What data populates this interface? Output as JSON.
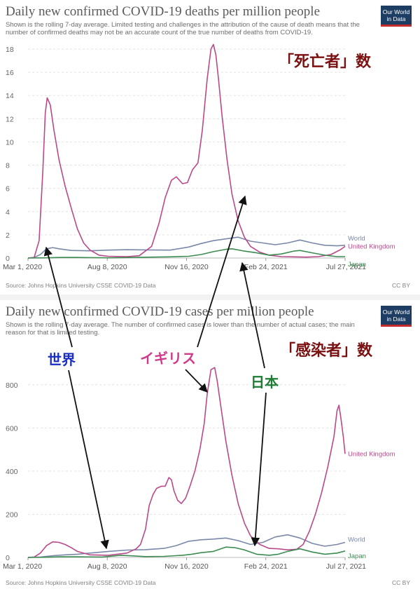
{
  "chart_data": [
    {
      "type": "line",
      "title": "Daily new confirmed COVID-19 deaths per million people",
      "subtitle": "Shown is the rolling 7-day average. Limited testing and challenges in the attribution of the cause of death means that the number of confirmed deaths may not be an accurate count of the true number of deaths from COVID-19.",
      "source": "Source: Johns Hopkins University CSSE COVID-19 Data",
      "license": "CC BY",
      "logo": [
        "Our World",
        "in Data"
      ],
      "ylim": [
        0,
        18
      ],
      "y_ticks": [
        0,
        2,
        4,
        6,
        8,
        10,
        12,
        14,
        16,
        18
      ],
      "x_ticks": [
        "Mar 1, 2020",
        "Aug 8, 2020",
        "Nov 16, 2020",
        "Feb 24, 2021",
        "Jul 27, 2021"
      ],
      "xlim_days": [
        0,
        513
      ],
      "grid": true,
      "series": [
        {
          "name": "World",
          "color": "#7a88a8",
          "x": [
            0,
            10,
            20,
            30,
            40,
            50,
            70,
            100,
            130,
            160,
            190,
            230,
            260,
            280,
            300,
            320,
            340,
            360,
            380,
            400,
            420,
            440,
            460,
            480,
            500,
            513
          ],
          "y": [
            0,
            0.05,
            0.3,
            0.8,
            0.9,
            0.8,
            0.65,
            0.62,
            0.68,
            0.72,
            0.7,
            0.68,
            0.95,
            1.25,
            1.5,
            1.65,
            1.8,
            1.45,
            1.3,
            1.15,
            1.3,
            1.55,
            1.3,
            1.1,
            1.05,
            1.1
          ]
        },
        {
          "name": "United Kingdom",
          "color": "#b84a8a",
          "x": [
            0,
            10,
            18,
            24,
            28,
            31,
            36,
            42,
            50,
            60,
            70,
            80,
            90,
            100,
            115,
            130,
            160,
            180,
            200,
            212,
            222,
            232,
            240,
            250,
            258,
            266,
            275,
            282,
            290,
            296,
            300,
            304,
            308,
            314,
            322,
            330,
            340,
            350,
            360,
            375,
            390,
            410,
            430,
            450,
            470,
            490,
            505,
            513
          ],
          "y": [
            0,
            0.05,
            1.5,
            7.5,
            12.5,
            13.8,
            13.2,
            11.0,
            8.5,
            6.2,
            4.3,
            2.5,
            1.3,
            0.7,
            0.25,
            0.15,
            0.12,
            0.2,
            1.0,
            3.0,
            5.2,
            6.7,
            7.0,
            6.4,
            6.5,
            7.6,
            8.2,
            11.0,
            15.5,
            18.0,
            18.4,
            17.5,
            15.5,
            12.2,
            8.5,
            5.5,
            3.2,
            1.8,
            1.0,
            0.5,
            0.25,
            0.12,
            0.1,
            0.08,
            0.12,
            0.3,
            0.7,
            1.0
          ]
        },
        {
          "name": "Japan",
          "color": "#3c8c52",
          "x": [
            0,
            30,
            50,
            80,
            130,
            170,
            200,
            230,
            260,
            280,
            300,
            320,
            330,
            350,
            370,
            390,
            410,
            430,
            440,
            460,
            480,
            500,
            513
          ],
          "y": [
            0,
            0.02,
            0.05,
            0.05,
            0.02,
            0.05,
            0.08,
            0.1,
            0.15,
            0.3,
            0.55,
            0.75,
            0.8,
            0.6,
            0.45,
            0.25,
            0.35,
            0.6,
            0.65,
            0.45,
            0.25,
            0.12,
            0.12
          ]
        }
      ]
    },
    {
      "type": "line",
      "title": "Daily new confirmed COVID-19 cases per million people",
      "subtitle": "Shown is the rolling 7-day average. The number of confirmed cases is lower than the number of actual cases; the main reason for that is limited testing.",
      "source": "Source: Johns Hopkins University CSSE COVID-19 Data",
      "license": "CC BY",
      "logo": [
        "Our World",
        "in Data"
      ],
      "ylim": [
        0,
        900
      ],
      "y_ticks": [
        0,
        200,
        400,
        600,
        800
      ],
      "x_ticks": [
        "Mar 1, 2020",
        "Aug 8, 2020",
        "Nov 16, 2020",
        "Feb 24, 2021",
        "Jul 27, 2021"
      ],
      "xlim_days": [
        0,
        513
      ],
      "grid": true,
      "series": [
        {
          "name": "World",
          "color": "#7a88a8",
          "x": [
            0,
            20,
            40,
            60,
            80,
            100,
            130,
            160,
            190,
            220,
            240,
            260,
            280,
            300,
            320,
            340,
            360,
            380,
            400,
            420,
            440,
            460,
            480,
            500,
            513
          ],
          "y": [
            0,
            2,
            8,
            12,
            15,
            20,
            28,
            34,
            36,
            42,
            55,
            75,
            82,
            85,
            90,
            78,
            60,
            70,
            95,
            105,
            90,
            65,
            52,
            60,
            70
          ]
        },
        {
          "name": "United Kingdom",
          "color": "#b84a8a",
          "x": [
            0,
            10,
            20,
            30,
            40,
            50,
            60,
            70,
            80,
            100,
            130,
            160,
            175,
            182,
            190,
            196,
            202,
            208,
            216,
            222,
            228,
            232,
            236,
            242,
            248,
            255,
            262,
            270,
            278,
            285,
            290,
            296,
            302,
            306,
            312,
            320,
            330,
            340,
            350,
            360,
            375,
            390,
            405,
            420,
            435,
            445,
            455,
            465,
            475,
            485,
            495,
            500,
            503,
            506,
            510,
            513
          ],
          "y": [
            0,
            2,
            20,
            55,
            72,
            70,
            60,
            45,
            28,
            12,
            10,
            20,
            40,
            60,
            130,
            240,
            290,
            320,
            330,
            330,
            370,
            360,
            310,
            265,
            250,
            275,
            330,
            400,
            500,
            620,
            760,
            870,
            880,
            820,
            700,
            540,
            380,
            250,
            160,
            100,
            60,
            42,
            40,
            35,
            38,
            60,
            120,
            200,
            300,
            420,
            560,
            680,
            705,
            650,
            560,
            480
          ]
        },
        {
          "name": "Japan",
          "color": "#3c8c52",
          "x": [
            0,
            30,
            50,
            80,
            120,
            150,
            170,
            190,
            220,
            250,
            265,
            280,
            300,
            320,
            335,
            350,
            370,
            390,
            405,
            420,
            440,
            460,
            480,
            500,
            513
          ],
          "y": [
            0,
            1,
            3,
            3,
            2,
            10,
            7,
            4,
            5,
            10,
            15,
            22,
            28,
            48,
            45,
            35,
            15,
            10,
            15,
            28,
            40,
            25,
            15,
            20,
            30
          ]
        }
      ]
    }
  ],
  "annotations": {
    "deaths_label": "「死亡者」数",
    "cases_label": "「感染者」数",
    "world": "世界",
    "uk": "イギリス",
    "japan": "日本"
  }
}
